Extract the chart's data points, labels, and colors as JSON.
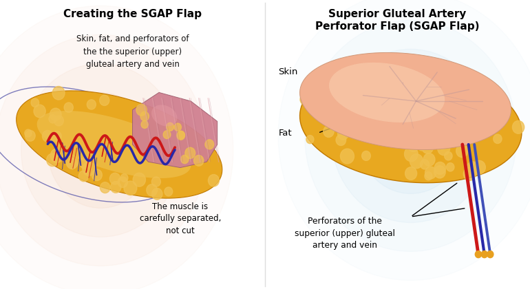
{
  "left_title": "Creating the SGAP Flap",
  "left_subtitle": "Skin, fat, and perforators of\nthe the superior (upper)\ngluteal artery and vein",
  "left_annotation": "The muscle is\ncarefully separated,\nnot cut",
  "right_title": "Superior Gluteal Artery\nPerforator Flap (SGAP Flap)",
  "right_label_skin": "Skin",
  "right_label_fat": "Fat",
  "right_label_perforators": "Perforators of the\nsuperior (upper) gluteal\nartery and vein",
  "bg_color": "#ffffff",
  "left_bg_glow": "#f0c0a0",
  "right_bg_glow": "#b8d8ee",
  "fat_color": "#e8a820",
  "fat_color2": "#f0b830",
  "fat_dark": "#c07800",
  "skin_color": "#f2b090",
  "skin_light": "#fac8a8",
  "muscle_color": "#c87080",
  "muscle_light": "#d89090",
  "artery_color": "#cc1818",
  "vein_color": "#2828a8",
  "vein_color2": "#4050b8",
  "divider_color": "#dddddd"
}
